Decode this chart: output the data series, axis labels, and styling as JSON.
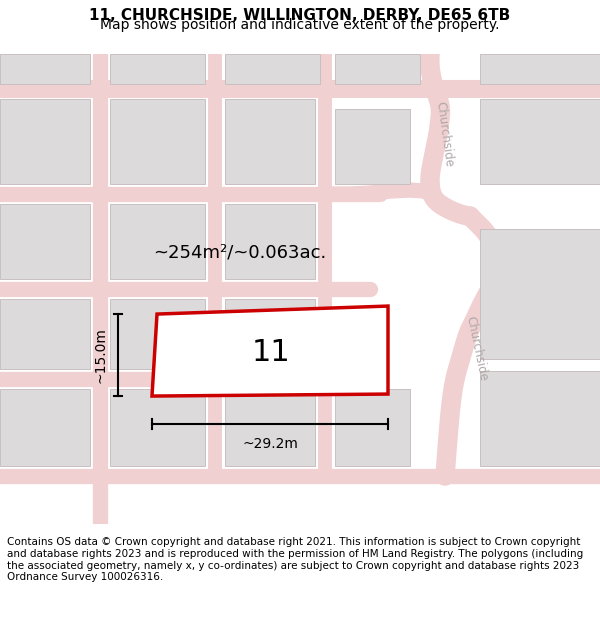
{
  "title": "11, CHURCHSIDE, WILLINGTON, DERBY, DE65 6TB",
  "subtitle": "Map shows position and indicative extent of the property.",
  "footer": "Contains OS data © Crown copyright and database right 2021. This information is subject to Crown copyright and database rights 2023 and is reproduced with the permission of HM Land Registry. The polygons (including the associated geometry, namely x, y co-ordinates) are subject to Crown copyright and database rights 2023 Ordnance Survey 100026316.",
  "map_bg": "#f2f0f0",
  "road_color": "#f0d0d0",
  "building_fill": "#dcdada",
  "building_edge": "#c8c0c0",
  "street_label_color": "#b0a8a8",
  "plot_color": "#cc0000",
  "plot_fill": "white",
  "plot_label": "11",
  "area_label": "~254m²/~0.063ac.",
  "width_label": "~29.2m",
  "height_label": "~15.0m",
  "title_fontsize": 11,
  "subtitle_fontsize": 10,
  "footer_fontsize": 7.5
}
